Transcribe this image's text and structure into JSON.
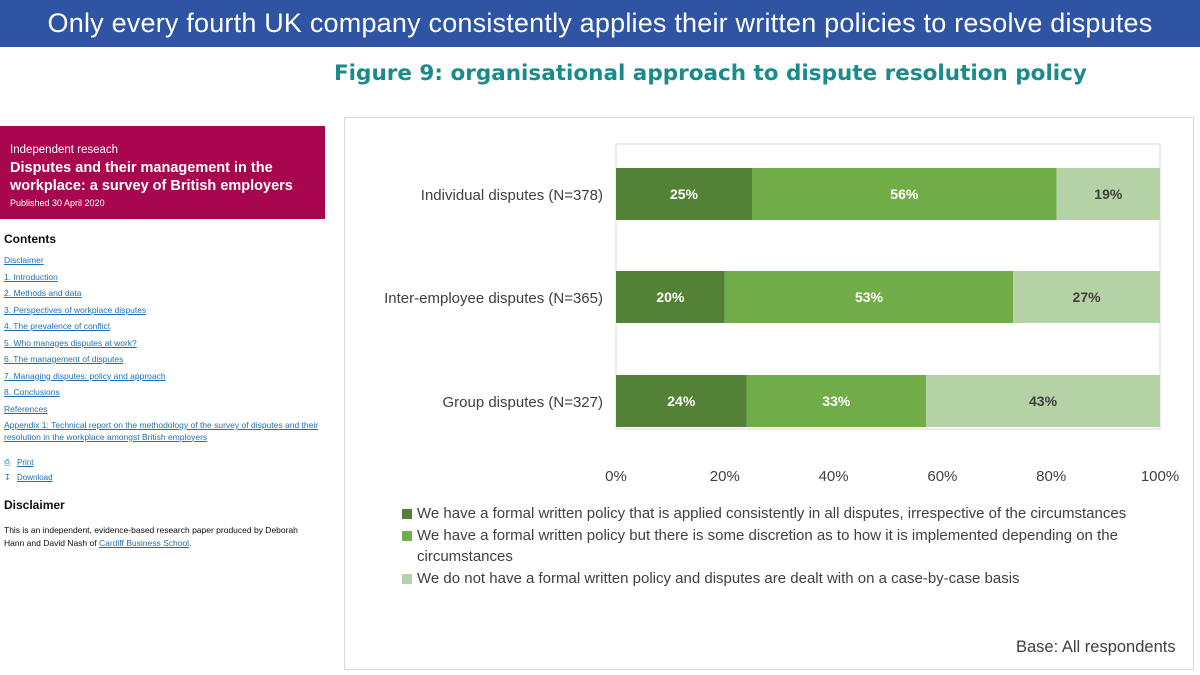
{
  "banner": {
    "text": "Only every fourth UK company consistently applies their written policies to resolve disputes"
  },
  "figure": {
    "title": "Figure 9: organisational approach to dispute resolution policy"
  },
  "report": {
    "kicker": "Independent reseach",
    "title": "Disputes and their management in the workplace: a survey of British employers",
    "published": "Published 30 April 2020",
    "contents_heading": "Contents",
    "contents": [
      "Disclaimer",
      "1. Introduction",
      "2. Methods and data",
      "3. Perspectives of workplace disputes",
      "4. The prevalence of conflict",
      "5. Who manages disputes at work?",
      "6. The management of disputes",
      "7. Managing disputes: policy and approach",
      "8. Conclusions",
      "References",
      "Appendix 1: Technical report on the methodology of the survey of disputes and their resolution in the workplace amongst British employers"
    ],
    "print_label": "Print",
    "download_label": "Download",
    "disclaimer_heading": "Disclaimer",
    "disclaimer_text": "This is an independent, evidence-based research paper produced by Deborah Hann and David Nash of ",
    "disclaimer_link": "Cardiff Business School",
    "disclaimer_end": "."
  },
  "chart_data": {
    "type": "bar",
    "orientation": "horizontal",
    "stacked": true,
    "categories": [
      "Individual disputes (N=378)",
      "Inter-employee disputes (N=365)",
      "Group disputes (N=327)"
    ],
    "series": [
      {
        "name": "We have a formal written policy that is applied consistently in all disputes, irrespective of the circumstances",
        "values": [
          25,
          20,
          24
        ],
        "color": "#538135",
        "label_color": "#ffffff"
      },
      {
        "name": "We have a formal written policy but there is some discretion as to how it is implemented depending on the circumstances",
        "values": [
          56,
          53,
          33
        ],
        "color": "#70ad47",
        "label_color": "#ffffff"
      },
      {
        "name": "We do not have a formal written policy and disputes are dealt with on a case-by-case basis",
        "values": [
          19,
          27,
          43
        ],
        "color": "#b4d2a5",
        "label_color": "#404040"
      }
    ],
    "data_labels": [
      [
        "25%",
        "56%",
        "19%"
      ],
      [
        "20%",
        "53%",
        "27%"
      ],
      [
        "24%",
        "33%",
        "43%"
      ]
    ],
    "xlim": [
      0,
      100
    ],
    "x_ticks": [
      "0%",
      "20%",
      "40%",
      "60%",
      "80%",
      "100%"
    ],
    "xlabel": "",
    "ylabel": "",
    "legend_position": "bottom",
    "grid": false,
    "base_note": "Base: All respondents"
  }
}
